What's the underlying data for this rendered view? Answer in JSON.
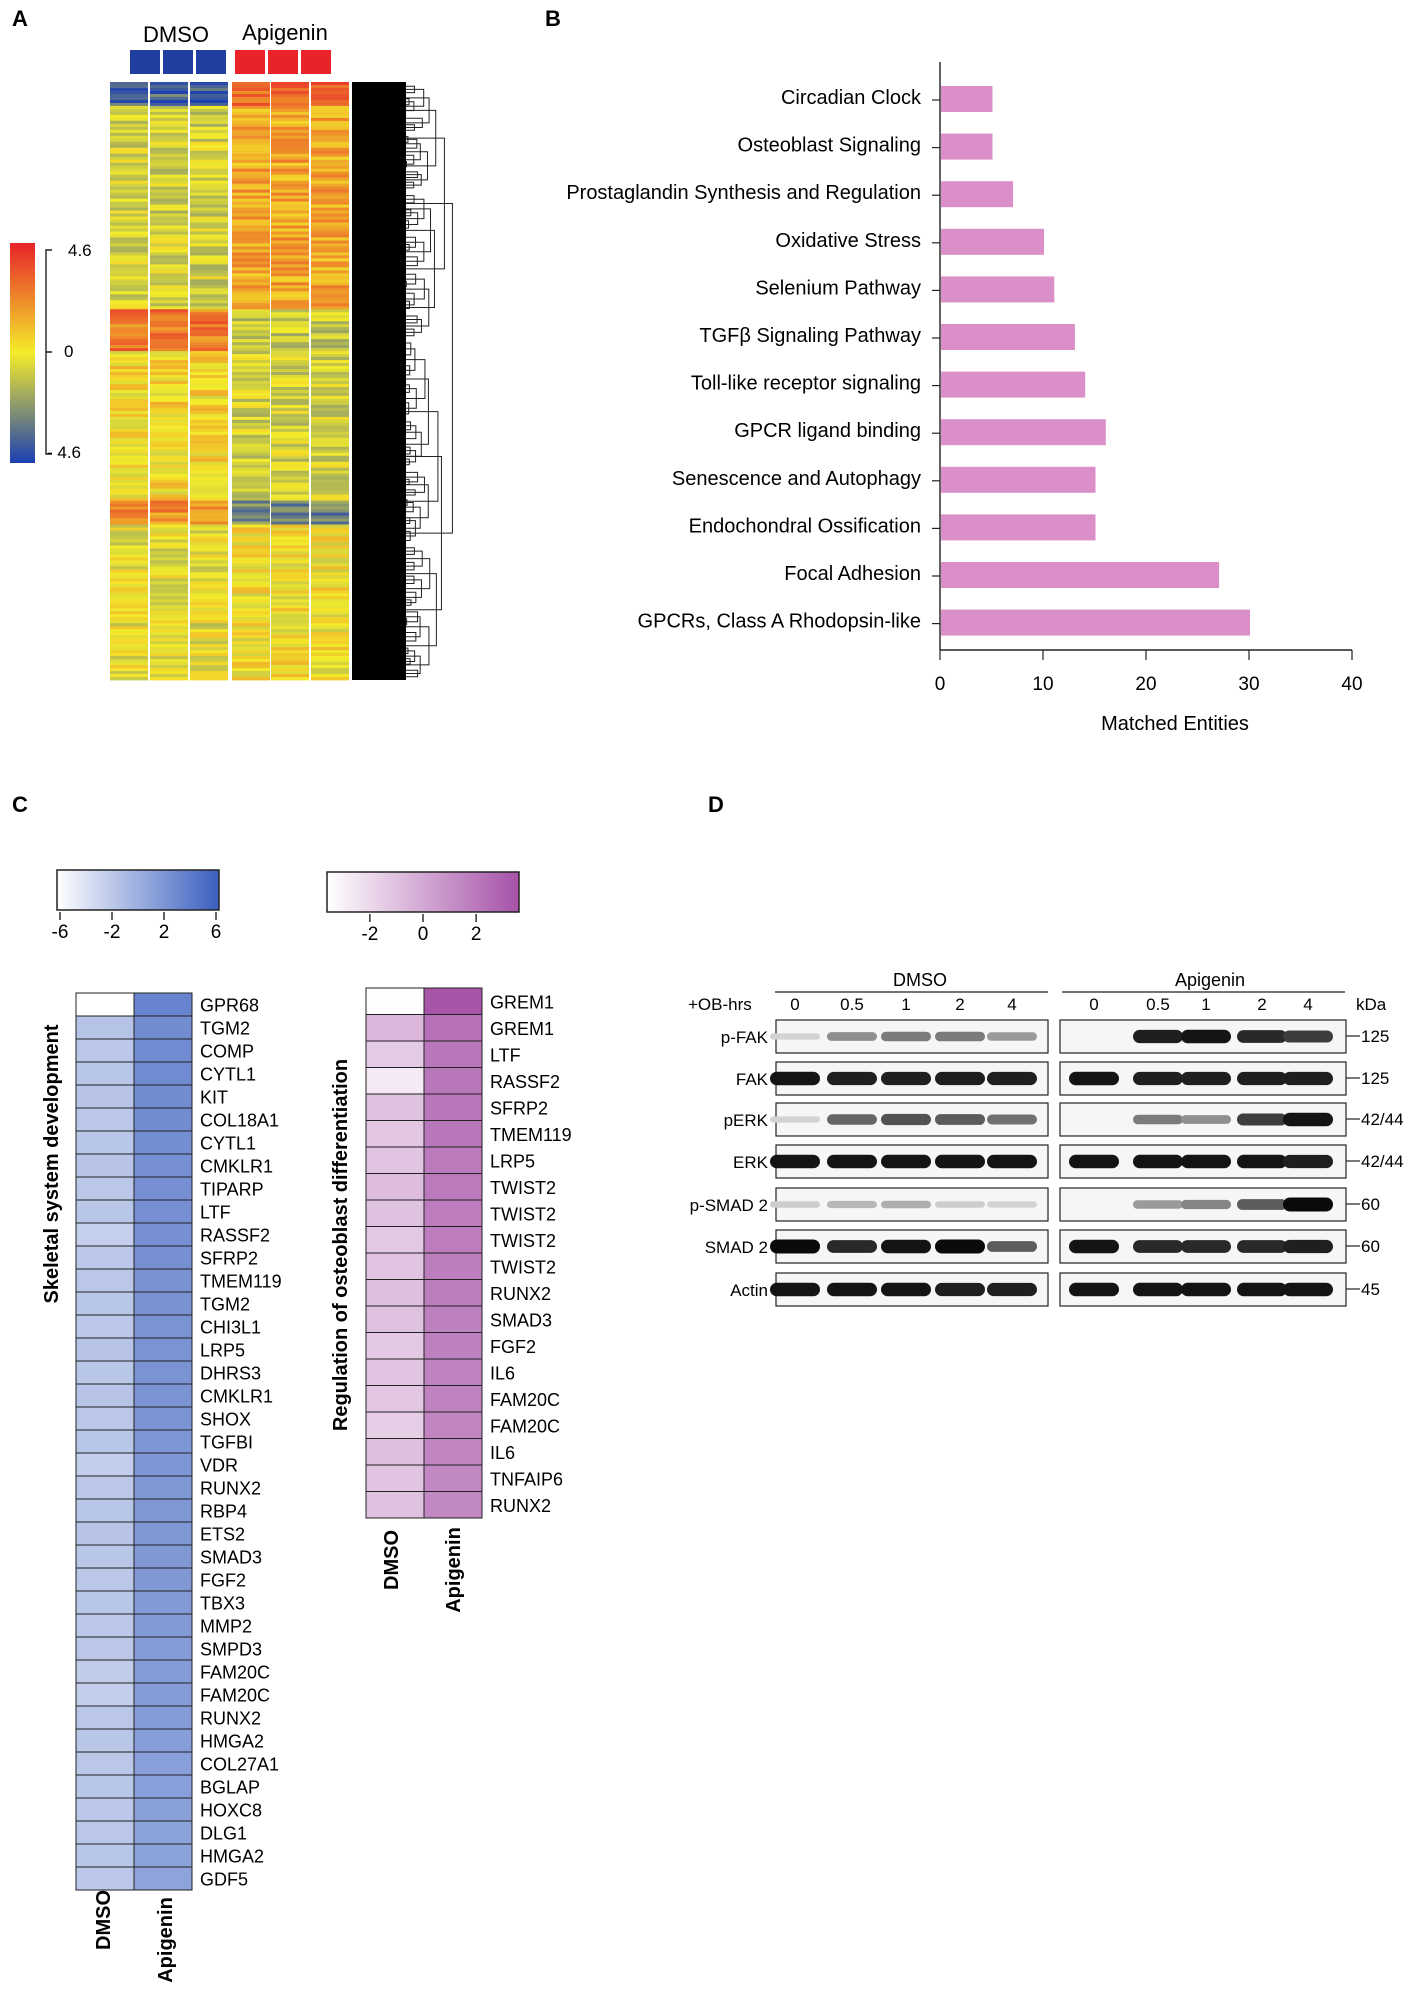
{
  "panel_labels": {
    "a": "A",
    "b": "B",
    "c": "C",
    "d": "D"
  },
  "chart_data": [
    {
      "id": "A",
      "type": "heatmap",
      "title": "",
      "columns": [
        "DMSO",
        "DMSO",
        "DMSO",
        "Apigenin",
        "Apigenin",
        "Apigenin"
      ],
      "groups": [
        {
          "name": "DMSO",
          "color": "#1f3f9e"
        },
        {
          "name": "Apigenin",
          "color": "#e8232a"
        }
      ],
      "colorbar": {
        "ticks": [
          "4.6",
          "0",
          "- 4.6"
        ],
        "min": -4.6,
        "max": 4.6,
        "colors": [
          "#1b3fb3",
          "#f4ec2a",
          "#e8232a"
        ]
      },
      "dendrogram": true
    },
    {
      "id": "B",
      "type": "bar",
      "orientation": "horizontal",
      "categories": [
        "Circadian Clock",
        "Osteoblast Signaling",
        "Prostaglandin Synthesis and Regulation",
        "Oxidative Stress",
        "Selenium Pathway",
        "TGFβ Signaling Pathway",
        "Toll-like receptor signaling",
        "GPCR ligand binding",
        "Senescence and Autophagy",
        "Endochondral Ossification",
        "Focal Adhesion",
        "GPCRs, Class A Rhodopsin-like"
      ],
      "values": [
        5,
        5,
        7,
        10,
        11,
        13,
        14,
        16,
        15,
        15,
        27,
        30
      ],
      "xlabel": "Matched Entities",
      "ylabel": "",
      "xlim": [
        0,
        40
      ],
      "xticks": [
        "0",
        "10",
        "20",
        "30",
        "40"
      ],
      "color": "#db8fc8"
    },
    {
      "id": "C1",
      "type": "heatmap",
      "title": "Skeletal system development",
      "columns": [
        "DMSO",
        "Apigenin"
      ],
      "genes": [
        "GPR68",
        "TGM2",
        "COMP",
        "CYTL1",
        "KIT",
        "COL18A1",
        "CYTL1",
        "CMKLR1",
        "TIPARP",
        "LTF",
        "RASSF2",
        "SFRP2",
        "TMEM119",
        "TGM2",
        "CHI3L1",
        "LRP5",
        "DHRS3",
        "CMKLR1",
        "SHOX",
        "TGFBI",
        "VDR",
        "RUNX2",
        "RBP4",
        "ETS2",
        "SMAD3",
        "FGF2",
        "TBX3",
        "MMP2",
        "SMPD3",
        "FAM20C",
        "FAM20C",
        "RUNX2",
        "HMGA2",
        "COL27A1",
        "BGLAP",
        "HOXC8",
        "DLG1",
        "HMGA2",
        "GDF5"
      ],
      "dmso": [
        -6,
        -1.5,
        -1.8,
        -1.7,
        -1.6,
        -1.8,
        -1.7,
        -1.6,
        -1.8,
        -1.7,
        -2.4,
        -1.9,
        -1.8,
        -1.7,
        -1.9,
        -1.6,
        -1.7,
        -1.6,
        -1.8,
        -1.7,
        -2.3,
        -1.8,
        -1.7,
        -1.6,
        -1.7,
        -1.8,
        -1.7,
        -1.9,
        -1.8,
        -2.2,
        -2.3,
        -1.8,
        -1.7,
        -1.8,
        -1.7,
        -1.9,
        -1.8,
        -1.7,
        -1.9
      ],
      "apigenin": [
        3.2,
        2.6,
        2.7,
        2.7,
        2.6,
        2.6,
        2.5,
        2.4,
        2.4,
        2.4,
        2.3,
        2.3,
        2.2,
        2.2,
        2.1,
        2.1,
        2.1,
        2.0,
        2.0,
        1.9,
        1.9,
        1.8,
        1.8,
        1.8,
        1.7,
        1.7,
        1.6,
        1.6,
        1.5,
        1.5,
        1.4,
        1.4,
        1.3,
        1.2,
        1.2,
        1.1,
        1.0,
        1.0,
        0.9
      ],
      "colorbar": {
        "ticks": [
          "-6",
          "-2",
          "2",
          "6"
        ],
        "tick_values": [
          -6,
          -2,
          2,
          6
        ],
        "min": -6,
        "max": 6,
        "low": "#ffffff",
        "high": "#3a5fbf"
      }
    },
    {
      "id": "C2",
      "type": "heatmap",
      "title": "Regulation of osteoblast differentiation",
      "columns": [
        "DMSO",
        "Apigenin"
      ],
      "genes": [
        "GREM1",
        "GREM1",
        "LTF",
        "RASSF2",
        "SFRP2",
        "TMEM119",
        "LRP5",
        "TWIST2",
        "TWIST2",
        "TWIST2",
        "TWIST2",
        "RUNX2",
        "SMAD3",
        "FGF2",
        "IL6",
        "FAM20C",
        "FAM20C",
        "IL6",
        "TNFAIP6",
        "RUNX2"
      ],
      "dmso": [
        -3.4,
        -0.6,
        -1.4,
        -2.6,
        -1.0,
        -1.2,
        -1.1,
        -0.8,
        -1.0,
        -1.3,
        -1.1,
        -0.9,
        -1.0,
        -1.3,
        -1.1,
        -1.2,
        -1.5,
        -0.9,
        -1.1,
        -1.0
      ],
      "apigenin": [
        3.4,
        2.3,
        2.0,
        2.0,
        2.0,
        2.0,
        1.9,
        1.9,
        1.8,
        1.8,
        1.7,
        1.7,
        1.6,
        1.6,
        1.5,
        1.5,
        1.4,
        1.4,
        1.3,
        1.3
      ],
      "colorbar": {
        "ticks": [
          "-2",
          "0",
          "2"
        ],
        "tick_values": [
          -2,
          0,
          2
        ],
        "min": -3.5,
        "max": 3.5,
        "low": "#ffffff",
        "high": "#a652a8"
      }
    }
  ],
  "blot": {
    "treatment_label": "+OB-hrs",
    "groups": [
      "DMSO",
      "Apigenin"
    ],
    "time_points": [
      "0",
      "0.5",
      "1",
      "2",
      "4"
    ],
    "kda_label": "kDa",
    "rows": [
      {
        "label": "p-FAK",
        "kda": "125",
        "dmso": [
          0.02,
          0.35,
          0.45,
          0.45,
          0.3
        ],
        "apigenin": [
          0.0,
          0.9,
          0.95,
          0.85,
          0.75
        ]
      },
      {
        "label": "FAK",
        "kda": "125",
        "dmso": [
          0.95,
          0.9,
          0.9,
          0.9,
          0.9
        ],
        "apigenin": [
          0.95,
          0.9,
          0.9,
          0.9,
          0.9
        ]
      },
      {
        "label": "pERK",
        "kda": "42/44",
        "dmso": [
          0.02,
          0.55,
          0.65,
          0.6,
          0.5
        ],
        "apigenin": [
          0.0,
          0.45,
          0.35,
          0.75,
          0.95
        ]
      },
      {
        "label": "ERK",
        "kda": "42/44",
        "dmso": [
          0.95,
          0.95,
          0.95,
          0.95,
          0.95
        ],
        "apigenin": [
          0.95,
          0.95,
          0.95,
          0.95,
          0.9
        ]
      },
      {
        "label": "p-SMAD 2",
        "kda": "60",
        "dmso": [
          0.05,
          0.15,
          0.2,
          0.05,
          0.02
        ],
        "apigenin": [
          0.0,
          0.3,
          0.4,
          0.6,
          1.0
        ]
      },
      {
        "label": "SMAD 2",
        "kda": "60",
        "dmso": [
          1.0,
          0.85,
          0.95,
          1.0,
          0.6
        ],
        "apigenin": [
          0.95,
          0.85,
          0.85,
          0.85,
          0.9
        ]
      },
      {
        "label": "Actin",
        "kda": "45",
        "dmso": [
          0.95,
          0.95,
          0.95,
          0.9,
          0.9
        ],
        "apigenin": [
          0.95,
          0.95,
          0.95,
          0.95,
          0.95
        ]
      }
    ]
  }
}
